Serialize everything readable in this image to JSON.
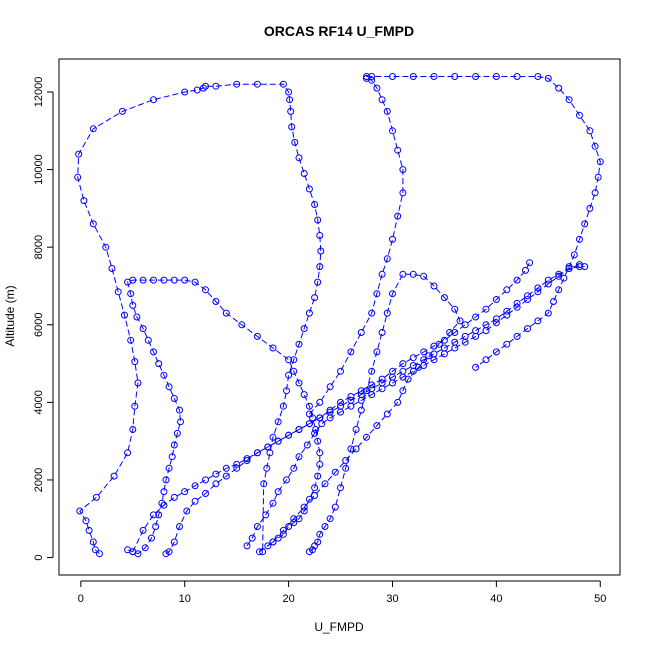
{
  "chart_data": {
    "type": "scatter",
    "title": "ORCAS RF14 U_FMPD",
    "xlabel": "U_FMPD",
    "ylabel": "Altitude (m)",
    "xlim": [
      -2.1,
      51.9
    ],
    "ylim": [
      -450,
      12850
    ],
    "x_ticks": [
      0,
      10,
      20,
      30,
      40,
      50
    ],
    "x_tick_labels": [
      "0",
      "10",
      "20",
      "30",
      "40",
      "50"
    ],
    "y_ticks": [
      0,
      2000,
      4000,
      6000,
      8000,
      10000,
      12000
    ],
    "y_tick_labels": [
      "0",
      "2000",
      "4000",
      "6000",
      "8000",
      "10000",
      "12000"
    ],
    "grid": false,
    "legend": "none",
    "marker": "open-circle",
    "line_style": "dashed",
    "color": "#0000ff",
    "series": [
      {
        "x": [
          1.8,
          1.4,
          1.2,
          0.8,
          0.5,
          -0.1,
          1.5,
          3.2,
          4.5,
          5.0,
          5.2,
          5.5,
          5.2,
          4.8,
          4.2,
          3.6,
          3.0,
          2.4,
          1.2,
          0.3,
          -0.3,
          -0.2,
          1.2,
          4.0,
          7.0,
          10.0,
          11.2,
          11.8,
          12.0,
          13.0,
          15.0,
          17.0,
          19.5,
          20.0,
          20.1,
          20.2,
          20.3,
          20.6,
          21.0,
          21.5,
          22.0,
          22.5,
          22.8,
          23.0,
          23.1,
          23.0,
          22.8,
          22.5,
          22.0,
          21.5,
          21.0,
          20.5,
          20.0,
          19.8,
          19.5,
          19.0,
          18.5,
          18.2,
          17.9,
          17.6,
          17.5
        ],
        "y": [
          100,
          200,
          400,
          700,
          950,
          1200,
          1550,
          2100,
          2700,
          3300,
          3900,
          4500,
          5050,
          5600,
          6250,
          6850,
          7450,
          8000,
          8600,
          9200,
          9800,
          10400,
          11050,
          11500,
          11800,
          12000,
          12050,
          12100,
          12150,
          12150,
          12200,
          12200,
          12200,
          12000,
          11800,
          11500,
          11100,
          10700,
          10300,
          9900,
          9500,
          9100,
          8700,
          8300,
          7900,
          7500,
          7100,
          6700,
          6300,
          5900,
          5500,
          5100,
          4700,
          4300,
          3900,
          3500,
          3100,
          2700,
          2300,
          1900,
          150
        ]
      },
      {
        "x": [
          4.5,
          5.0,
          5.5,
          6.2,
          6.8,
          7.2,
          7.5,
          7.8,
          8.0,
          8.2,
          8.5,
          8.8,
          9.0,
          9.3,
          9.6,
          9.5,
          9.0,
          8.5,
          8.0,
          7.5,
          7.0,
          6.5,
          6.0,
          5.4,
          5.0,
          4.8,
          4.5,
          5.0,
          6.0,
          7.0,
          8.0,
          9.0,
          10.0,
          11.0,
          12.0,
          13.0,
          14.0,
          15.5,
          17.0,
          18.5,
          20.0,
          20.5,
          21.0,
          21.5,
          22.0,
          22.3,
          22.6,
          22.8,
          23.0,
          23.0,
          22.8,
          22.5,
          22.0,
          21.5,
          21.0,
          20.5,
          20.0,
          19.5,
          19.0,
          18.5,
          18.0
        ],
        "y": [
          200,
          150,
          100,
          250,
          500,
          800,
          1100,
          1400,
          1700,
          2000,
          2300,
          2600,
          2900,
          3200,
          3500,
          3800,
          4100,
          4400,
          4700,
          5000,
          5300,
          5600,
          5900,
          6200,
          6500,
          6800,
          7100,
          7150,
          7150,
          7150,
          7150,
          7150,
          7150,
          7100,
          6900,
          6600,
          6300,
          6000,
          5700,
          5400,
          5100,
          4800,
          4500,
          4200,
          3900,
          3600,
          3300,
          3000,
          2700,
          2400,
          2100,
          1800,
          1500,
          1200,
          1000,
          900,
          800,
          600,
          500,
          400,
          300
        ]
      },
      {
        "x": [
          8.2,
          8.5,
          9.0,
          9.5,
          10.2,
          11.0,
          12.0,
          13.0,
          14.0,
          15.0,
          16.0,
          17.0,
          18.0,
          19.0,
          20.0,
          21.0,
          22.0,
          23.0,
          24.0,
          25.0,
          26.0,
          27.0,
          28.0,
          29.0,
          30.0,
          31.0,
          32.0,
          33.0,
          34.0,
          35.0,
          36.0,
          37.0,
          38.0,
          39.0,
          40.0,
          41.0,
          42.0,
          42.8,
          43.2
        ],
        "y": [
          100,
          150,
          400,
          800,
          1200,
          1450,
          1650,
          1900,
          2100,
          2300,
          2500,
          2700,
          2850,
          3000,
          3150,
          3300,
          3450,
          3600,
          3800,
          4000,
          4150,
          4300,
          4450,
          4600,
          4800,
          5000,
          5150,
          5300,
          5450,
          5600,
          5800,
          6000,
          6200,
          6400,
          6650,
          6900,
          7150,
          7400,
          7600
        ]
      },
      {
        "x": [
          5.0,
          6.0,
          7.0,
          8.0,
          9.0,
          10.0,
          11.0,
          12.0,
          13.0,
          14.0,
          15.0,
          16.0,
          17.0,
          18.0,
          19.0,
          20.0,
          21.0,
          22.0,
          23.0,
          24.0,
          25.0,
          26.0,
          27.0,
          28.0,
          29.0,
          30.0,
          31.0,
          32.0,
          33.0,
          34.0,
          35.0,
          36.0,
          37.0,
          38.0,
          39.0,
          40.0,
          41.0,
          42.0,
          43.0,
          44.0,
          45.0,
          46.0,
          47.0,
          48.0,
          48.5
        ],
        "y": [
          150,
          700,
          1100,
          1350,
          1550,
          1700,
          1850,
          2000,
          2150,
          2300,
          2400,
          2550,
          2700,
          2850,
          3000,
          3150,
          3300,
          3450,
          3600,
          3750,
          3900,
          4050,
          4200,
          4350,
          4500,
          4650,
          4800,
          4950,
          5100,
          5250,
          5400,
          5550,
          5700,
          5850,
          6000,
          6150,
          6350,
          6550,
          6750,
          6950,
          7150,
          7300,
          7450,
          7500,
          7500
        ]
      },
      {
        "x": [
          16.0,
          16.5,
          17.0,
          17.8,
          18.5,
          19.0,
          19.8,
          20.5,
          21.0,
          21.8,
          22.5,
          23.2,
          24.0,
          25.0,
          26.0,
          27.0,
          28.0,
          29.0,
          30.0,
          31.0,
          32.0,
          33.0,
          34.0,
          35.0,
          36.0,
          37.0,
          38.0,
          39.0,
          40.0,
          41.0,
          42.0,
          43.0,
          44.0,
          45.0,
          46.0,
          47.0,
          48.0
        ],
        "y": [
          300,
          500,
          800,
          1100,
          1400,
          1700,
          2000,
          2300,
          2600,
          2900,
          3200,
          3450,
          3600,
          3750,
          3900,
          4050,
          4200,
          4350,
          4500,
          4650,
          4800,
          4950,
          5100,
          5250,
          5400,
          5550,
          5700,
          5850,
          6050,
          6250,
          6450,
          6650,
          6850,
          7050,
          7250,
          7450,
          7550
        ]
      },
      {
        "x": [
          17.2,
          18.5,
          19.5,
          20.5,
          21.5,
          22.5,
          23.5,
          24.5,
          25.5,
          26.5,
          27.5,
          28.5,
          29.5,
          30.5,
          31.0,
          31.5,
          32.5,
          33.5,
          34.5,
          35.5,
          36.5,
          36.0,
          35.0,
          34.0,
          33.0,
          32.0,
          31.0,
          30.0,
          29.5,
          29.0,
          28.5,
          28.0,
          27.5,
          27.0,
          26.5,
          26.0,
          25.5,
          25.0,
          24.5,
          24.0,
          23.5,
          23.0,
          22.8,
          22.5,
          22.3,
          22.0
        ],
        "y": [
          150,
          400,
          700,
          1000,
          1300,
          1600,
          1900,
          2200,
          2500,
          2800,
          3100,
          3400,
          3700,
          4000,
          4300,
          4600,
          4900,
          5200,
          5500,
          5800,
          6100,
          6400,
          6700,
          7000,
          7250,
          7300,
          7300,
          6800,
          6300,
          5800,
          5300,
          4800,
          4300,
          3800,
          3300,
          2800,
          2300,
          1800,
          1300,
          1000,
          800,
          600,
          400,
          300,
          200,
          150
        ]
      },
      {
        "x": [
          22.0,
          23.0,
          24.0,
          25.0,
          26.0,
          27.0,
          28.0,
          28.5,
          29.0,
          29.5,
          30.0,
          30.5,
          31.0,
          31.0,
          30.5,
          30.0,
          29.5,
          29.0,
          28.5,
          28.0,
          27.5,
          27.5,
          28.0,
          30.0,
          32.0,
          34.0,
          36.0,
          38.0,
          40.0,
          42.0,
          44.0,
          45.0,
          46.0,
          47.0,
          48.0,
          49.0,
          49.5,
          50.0,
          49.8,
          49.5,
          49.0,
          48.5,
          48.0,
          47.5,
          47.0,
          46.5,
          46.0,
          45.5,
          45.0,
          44.0,
          43.0,
          42.0,
          41.0,
          40.0,
          39.0,
          38.0
        ],
        "y": [
          3700,
          4000,
          4400,
          4800,
          5300,
          5800,
          6300,
          6800,
          7300,
          7700,
          8200,
          8800,
          9400,
          10000,
          10500,
          11000,
          11500,
          11800,
          12100,
          12300,
          12350,
          12400,
          12400,
          12400,
          12400,
          12400,
          12400,
          12400,
          12400,
          12400,
          12400,
          12350,
          12100,
          11800,
          11400,
          11000,
          10600,
          10200,
          9800,
          9400,
          9000,
          8600,
          8200,
          7800,
          7500,
          7200,
          6900,
          6600,
          6300,
          6100,
          5900,
          5700,
          5500,
          5300,
          5100,
          4900
        ]
      }
    ]
  }
}
